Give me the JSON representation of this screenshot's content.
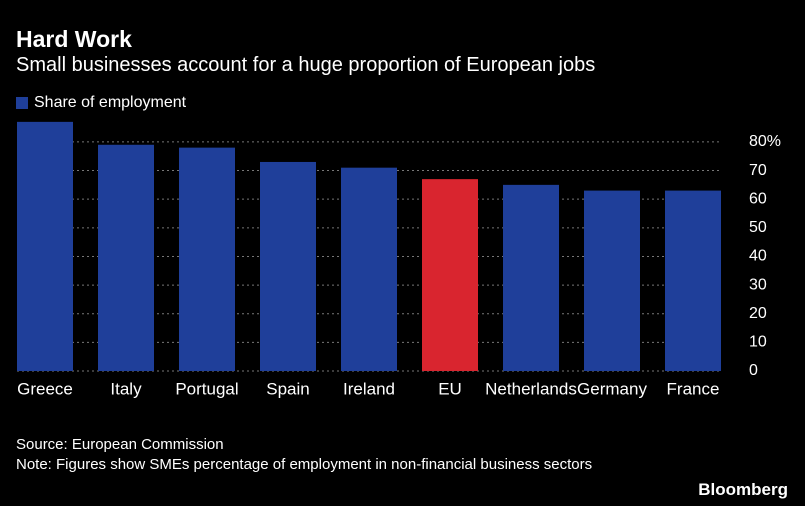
{
  "chart_data": {
    "type": "bar",
    "title": "Hard Work",
    "subtitle": "Small businesses account for a huge proportion of European jobs",
    "legend": "Share of employment",
    "categories": [
      "Greece",
      "Italy",
      "Portugal",
      "Spain",
      "Ireland",
      "EU",
      "Netherlands",
      "Germany",
      "France"
    ],
    "values": [
      87,
      79,
      78,
      73,
      71,
      67,
      65,
      63,
      63
    ],
    "colors": [
      "#1f3f9a",
      "#1f3f9a",
      "#1f3f9a",
      "#1f3f9a",
      "#1f3f9a",
      "#d9252f",
      "#1f3f9a",
      "#1f3f9a",
      "#1f3f9a"
    ],
    "ylim": [
      0,
      88
    ],
    "yticks": [
      0,
      10,
      20,
      30,
      40,
      50,
      60,
      70,
      {
        "value": 80,
        "label": "80%"
      }
    ],
    "grid": true,
    "source": "Source: European Commission",
    "note": "Note: Figures show SMEs percentage of employment in non-financial business sectors",
    "brand": "Bloomberg"
  }
}
